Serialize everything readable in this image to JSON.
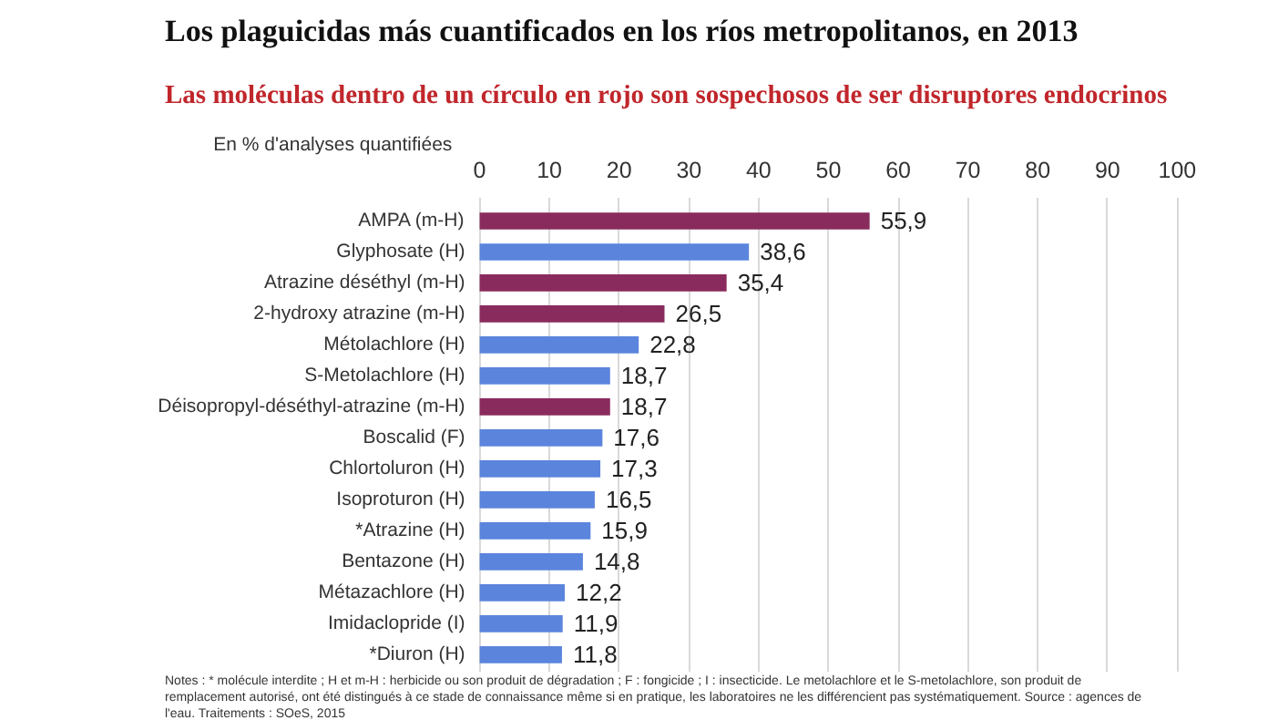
{
  "chart_data": {
    "type": "bar",
    "orientation": "horizontal",
    "title": "Los plaguicidas más cuantificados en los ríos metropolitanos, en 2013",
    "subtitle": "Las moléculas dentro de un círculo en rojo son sospechosos de ser disruptores endocrinos",
    "xlabel": "En % d'analyses quantifiées",
    "categories": [
      "AMPA (m-H)",
      "Glyphosate (H)",
      "Atrazine déséthyl (m-H)",
      "2-hydroxy atrazine (m-H)",
      "Métolachlore (H)",
      "S-Metolachlore (H)",
      "Déisopropyl-déséthyl-atrazine (m-H)",
      "Boscalid (F)",
      "Chlortoluron (H)",
      "Isoproturon (H)",
      "*Atrazine (H)",
      "Bentazone (H)",
      "Métazachlore (H)",
      "Imidaclopride (I)",
      "*Diuron (H)"
    ],
    "values": [
      55.9,
      38.6,
      35.4,
      26.5,
      22.8,
      18.7,
      18.7,
      17.6,
      17.3,
      16.5,
      15.9,
      14.8,
      12.2,
      11.9,
      11.8
    ],
    "value_labels": [
      "55,9",
      "38,6",
      "35,4",
      "26,5",
      "22,8",
      "18,7",
      "18,7",
      "17,6",
      "17,3",
      "16,5",
      "15,9",
      "14,8",
      "12,2",
      "11,9",
      "11,8"
    ],
    "colors": [
      "#8a2b5e",
      "#5b84dc",
      "#8a2b5e",
      "#8a2b5e",
      "#5b84dc",
      "#5b84dc",
      "#8a2b5e",
      "#5b84dc",
      "#5b84dc",
      "#5b84dc",
      "#5b84dc",
      "#5b84dc",
      "#5b84dc",
      "#5b84dc",
      "#5b84dc"
    ],
    "xlim": [
      0,
      100
    ],
    "xticks": [
      0,
      10,
      20,
      30,
      40,
      50,
      60,
      70,
      80,
      90,
      100
    ],
    "grid": "x",
    "annotations": [
      "Notes : * molécule interdite ; H et m-H : herbicide ou son produit de dégradation ; F : fongicide ; I : insecticide. Le metolachlore et le S-metolachlore, son produit de remplacement autorisé, ont été distingués à ce stade de connaissance même si en pratique, les laboratoires ne les différencient pas systématiquement. Source : agences de l'eau. Traitements : SOeS, 2015"
    ]
  }
}
